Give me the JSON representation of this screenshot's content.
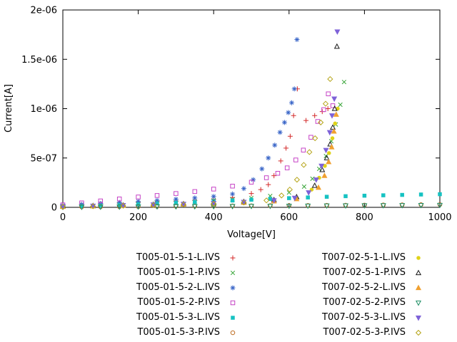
{
  "window": {
    "background": "#ffffff"
  },
  "chart_data": {
    "type": "scatter",
    "title": "",
    "xlabel": "Voltage[V]",
    "ylabel": "Current[A]",
    "xlim": [
      0,
      1000
    ],
    "ylim": [
      0,
      2e-06
    ],
    "xticks": [
      0,
      200,
      400,
      600,
      800,
      1000
    ],
    "xtick_labels": [
      "0",
      "200",
      "400",
      "600",
      "800",
      "1000"
    ],
    "yticks": [
      0,
      5e-07,
      1e-06,
      1.5e-06,
      2e-06
    ],
    "ytick_labels": [
      "0",
      "5e-07",
      "1e-06",
      "1.5e-06",
      "2e-06"
    ],
    "grid": false,
    "legend_position": "below-two-columns",
    "series": [
      {
        "name": "T005-01-5-1-L.IVS",
        "marker": "plus",
        "color": "#d42a2a",
        "points": [
          [
            0,
            1.5e-08
          ],
          [
            50,
            2.5e-08
          ],
          [
            100,
            3.5e-08
          ],
          [
            150,
            4.2e-08
          ],
          [
            200,
            5e-08
          ],
          [
            250,
            5.6e-08
          ],
          [
            300,
            6.2e-08
          ],
          [
            350,
            7e-08
          ],
          [
            400,
            8e-08
          ],
          [
            450,
            1e-07
          ],
          [
            500,
            1.4e-07
          ],
          [
            525,
            1.8e-07
          ],
          [
            545,
            2.3e-07
          ],
          [
            560,
            3.2e-07
          ],
          [
            578,
            4.7e-07
          ],
          [
            592,
            6e-07
          ],
          [
            603,
            7.2e-07
          ],
          [
            612,
            9.3e-07
          ],
          [
            622,
            1.2e-06
          ],
          [
            645,
            8.8e-07
          ],
          [
            668,
            9.3e-07
          ],
          [
            688,
            9.7e-07
          ],
          [
            703,
            1e-06
          ]
        ]
      },
      {
        "name": "T005-01-5-1-P.IVS",
        "marker": "cross",
        "color": "#3aa63a",
        "points": [
          [
            0,
            1.2e-08
          ],
          [
            50,
            2e-08
          ],
          [
            100,
            2.8e-08
          ],
          [
            150,
            3.4e-08
          ],
          [
            200,
            4e-08
          ],
          [
            250,
            4.6e-08
          ],
          [
            300,
            5.2e-08
          ],
          [
            350,
            6e-08
          ],
          [
            400,
            7e-08
          ],
          [
            450,
            8e-08
          ],
          [
            500,
            9.5e-08
          ],
          [
            550,
            1.15e-07
          ],
          [
            600,
            1.5e-07
          ],
          [
            640,
            2.1e-07
          ],
          [
            662,
            2.9e-07
          ],
          [
            680,
            3.9e-07
          ],
          [
            698,
            5.2e-07
          ],
          [
            712,
            6.7e-07
          ],
          [
            724,
            8.4e-07
          ],
          [
            736,
            1.04e-06
          ],
          [
            746,
            1.27e-06
          ]
        ]
      },
      {
        "name": "T005-01-5-2-L.IVS",
        "marker": "asterisk",
        "color": "#3a66c8",
        "points": [
          [
            0,
            1.8e-08
          ],
          [
            50,
            3e-08
          ],
          [
            100,
            4e-08
          ],
          [
            150,
            5e-08
          ],
          [
            200,
            6e-08
          ],
          [
            250,
            7e-08
          ],
          [
            300,
            8.2e-08
          ],
          [
            350,
            9.5e-08
          ],
          [
            400,
            1.1e-07
          ],
          [
            450,
            1.35e-07
          ],
          [
            480,
            1.9e-07
          ],
          [
            505,
            2.8e-07
          ],
          [
            528,
            3.9e-07
          ],
          [
            545,
            5e-07
          ],
          [
            562,
            6.3e-07
          ],
          [
            576,
            7.6e-07
          ],
          [
            588,
            8.6e-07
          ],
          [
            598,
            9.6e-07
          ],
          [
            607,
            1.06e-06
          ],
          [
            614,
            1.2e-06
          ],
          [
            621,
            1.7e-06
          ]
        ]
      },
      {
        "name": "T005-01-5-2-P.IVS",
        "marker": "square-open",
        "color": "#c643c6",
        "points": [
          [
            0,
            2.5e-08
          ],
          [
            50,
            4.5e-08
          ],
          [
            100,
            6.5e-08
          ],
          [
            150,
            8.5e-08
          ],
          [
            200,
            1.05e-07
          ],
          [
            250,
            1.2e-07
          ],
          [
            300,
            1.4e-07
          ],
          [
            350,
            1.6e-07
          ],
          [
            400,
            1.85e-07
          ],
          [
            450,
            2.15e-07
          ],
          [
            500,
            2.55e-07
          ],
          [
            540,
            3e-07
          ],
          [
            570,
            3.45e-07
          ],
          [
            595,
            4e-07
          ],
          [
            618,
            4.8e-07
          ],
          [
            638,
            5.8e-07
          ],
          [
            658,
            7.1e-07
          ],
          [
            676,
            8.7e-07
          ],
          [
            692,
            9.9e-07
          ],
          [
            704,
            1.15e-06
          ],
          [
            716,
            1.03e-06
          ]
        ]
      },
      {
        "name": "T005-01-5-3-L.IVS",
        "marker": "square-filled",
        "color": "#16c2c2",
        "points": [
          [
            0,
            5e-09
          ],
          [
            50,
            1.2e-08
          ],
          [
            100,
            1.8e-08
          ],
          [
            150,
            2.5e-08
          ],
          [
            200,
            3.2e-08
          ],
          [
            250,
            3.9e-08
          ],
          [
            300,
            4.6e-08
          ],
          [
            350,
            5.3e-08
          ],
          [
            400,
            6.1e-08
          ],
          [
            450,
            6.9e-08
          ],
          [
            500,
            7.7e-08
          ],
          [
            550,
            8.5e-08
          ],
          [
            600,
            9.3e-08
          ],
          [
            650,
            1e-07
          ],
          [
            700,
            1.07e-07
          ],
          [
            750,
            1.13e-07
          ],
          [
            800,
            1.18e-07
          ],
          [
            850,
            1.22e-07
          ],
          [
            900,
            1.26e-07
          ],
          [
            950,
            1.3e-07
          ],
          [
            1000,
            1.33e-07
          ]
        ]
      },
      {
        "name": "T005-01-5-3-P.IVS",
        "marker": "circle-open",
        "color": "#bc6a1e",
        "points": [
          [
            0,
            3e-09
          ],
          [
            50,
            4.5e-09
          ],
          [
            100,
            6e-09
          ],
          [
            150,
            7e-09
          ],
          [
            200,
            8e-09
          ],
          [
            250,
            9.5e-09
          ],
          [
            300,
            1.1e-08
          ],
          [
            350,
            1.2e-08
          ],
          [
            400,
            1.3e-08
          ],
          [
            450,
            1.4e-08
          ],
          [
            500,
            1.55e-08
          ],
          [
            550,
            1.7e-08
          ],
          [
            600,
            1.8e-08
          ],
          [
            650,
            1.9e-08
          ],
          [
            700,
            2.05e-08
          ],
          [
            750,
            2.2e-08
          ],
          [
            800,
            2.3e-08
          ],
          [
            850,
            2.4e-08
          ],
          [
            900,
            2.55e-08
          ],
          [
            950,
            2.7e-08
          ],
          [
            1000,
            2.8e-08
          ]
        ]
      },
      {
        "name": "T007-02-5-1-L.IVS",
        "marker": "circle-filled",
        "color": "#e0d318",
        "points": [
          [
            0,
            8e-09
          ],
          [
            80,
            1.4e-08
          ],
          [
            160,
            2e-08
          ],
          [
            240,
            2.6e-08
          ],
          [
            320,
            3.2e-08
          ],
          [
            400,
            4e-08
          ],
          [
            480,
            5e-08
          ],
          [
            560,
            6.5e-08
          ],
          [
            620,
            9e-08
          ],
          [
            660,
            1.8e-07
          ],
          [
            680,
            3e-07
          ],
          [
            695,
            4.2e-07
          ],
          [
            706,
            5.5e-07
          ],
          [
            715,
            7e-07
          ],
          [
            722,
            8.5e-07
          ],
          [
            729,
            1e-06
          ]
        ]
      },
      {
        "name": "T007-02-5-1-P.IVS",
        "marker": "triangle-up-open",
        "color": "#1a1a1a",
        "points": [
          [
            0,
            1e-08
          ],
          [
            80,
            1.6e-08
          ],
          [
            160,
            2.2e-08
          ],
          [
            240,
            2.8e-08
          ],
          [
            320,
            3.5e-08
          ],
          [
            400,
            4.4e-08
          ],
          [
            480,
            5.6e-08
          ],
          [
            560,
            7.5e-08
          ],
          [
            620,
            1.05e-07
          ],
          [
            668,
            2.2e-07
          ],
          [
            688,
            3.8e-07
          ],
          [
            700,
            5e-07
          ],
          [
            709,
            6.4e-07
          ],
          [
            716,
            8.1e-07
          ],
          [
            721,
            1e-06
          ],
          [
            727,
            1.63e-06
          ]
        ]
      },
      {
        "name": "T007-02-5-2-L.IVS",
        "marker": "triangle-up-filled",
        "color": "#f0a030",
        "points": [
          [
            0,
            7e-09
          ],
          [
            80,
            1.2e-08
          ],
          [
            160,
            1.8e-08
          ],
          [
            240,
            2.4e-08
          ],
          [
            320,
            3e-08
          ],
          [
            400,
            3.8e-08
          ],
          [
            480,
            4.8e-08
          ],
          [
            560,
            6.2e-08
          ],
          [
            620,
            8.5e-08
          ],
          [
            678,
            2e-07
          ],
          [
            694,
            3.2e-07
          ],
          [
            705,
            4.6e-07
          ],
          [
            713,
            6.1e-07
          ],
          [
            719,
            7.7e-07
          ],
          [
            725,
            9.4e-07
          ]
        ]
      },
      {
        "name": "T007-02-5-2-P.IVS",
        "marker": "triangle-down-open",
        "color": "#208f66",
        "points": [
          [
            0,
            2e-09
          ],
          [
            50,
            3e-09
          ],
          [
            100,
            4e-09
          ],
          [
            150,
            5e-09
          ],
          [
            200,
            6e-09
          ],
          [
            250,
            7e-09
          ],
          [
            300,
            8e-09
          ],
          [
            350,
            9e-09
          ],
          [
            400,
            1e-08
          ],
          [
            450,
            1.1e-08
          ],
          [
            500,
            1.2e-08
          ],
          [
            550,
            1.3e-08
          ],
          [
            600,
            1.4e-08
          ],
          [
            650,
            1.5e-08
          ],
          [
            700,
            1.6e-08
          ],
          [
            750,
            1.7e-08
          ],
          [
            800,
            1.8e-08
          ],
          [
            850,
            1.9e-08
          ],
          [
            900,
            2e-08
          ],
          [
            950,
            2.1e-08
          ],
          [
            1000,
            2.2e-08
          ]
        ]
      },
      {
        "name": "T007-02-5-3-L.IVS",
        "marker": "triangle-down-filled",
        "color": "#7e62d8",
        "points": [
          [
            0,
            9e-09
          ],
          [
            80,
            1.5e-08
          ],
          [
            160,
            2.1e-08
          ],
          [
            240,
            2.7e-08
          ],
          [
            320,
            3.4e-08
          ],
          [
            400,
            4.2e-08
          ],
          [
            480,
            5.3e-08
          ],
          [
            560,
            7e-08
          ],
          [
            615,
            9.5e-08
          ],
          [
            652,
            1.5e-07
          ],
          [
            672,
            2.8e-07
          ],
          [
            686,
            4.2e-07
          ],
          [
            698,
            5.8e-07
          ],
          [
            708,
            7.6e-07
          ],
          [
            714,
            9.3e-07
          ],
          [
            720,
            1.1e-06
          ],
          [
            728,
            1.78e-06
          ]
        ]
      },
      {
        "name": "T007-02-5-3-P.IVS",
        "marker": "diamond-open",
        "color": "#b5a417",
        "points": [
          [
            0,
            6e-09
          ],
          [
            80,
            1.1e-08
          ],
          [
            160,
            1.6e-08
          ],
          [
            240,
            2.2e-08
          ],
          [
            320,
            2.9e-08
          ],
          [
            400,
            3.7e-08
          ],
          [
            480,
            4.9e-08
          ],
          [
            540,
            7e-08
          ],
          [
            580,
            1.2e-07
          ],
          [
            602,
            1.8e-07
          ],
          [
            621,
            2.8e-07
          ],
          [
            639,
            4.3e-07
          ],
          [
            654,
            5.6e-07
          ],
          [
            669,
            7e-07
          ],
          [
            684,
            8.6e-07
          ],
          [
            697,
            1.05e-06
          ],
          [
            709,
            1.3e-06
          ]
        ]
      }
    ]
  }
}
